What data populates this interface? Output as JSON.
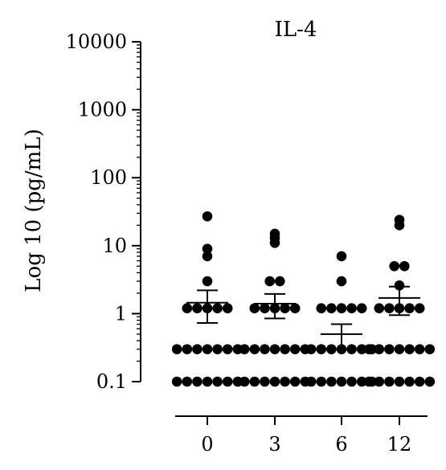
{
  "chart_data": {
    "type": "scatter",
    "title": "IL-4",
    "xlabel": "",
    "ylabel": "Log 10 (pg/mL)",
    "y_scale": "log",
    "ylim": [
      0.1,
      10000
    ],
    "y_ticks": [
      0.1,
      1,
      10,
      100,
      1000,
      10000
    ],
    "y_tick_labels": [
      "0.1",
      "1",
      "10",
      "100",
      "1000",
      "10000"
    ],
    "categories": [
      "0",
      "3",
      "6",
      "12"
    ],
    "grid": false,
    "legend": "none",
    "point_color": "#000000",
    "groups": [
      {
        "category": "0",
        "points": [
          27,
          9,
          7,
          3,
          1.2,
          1.2,
          1.2,
          1.2,
          1.2,
          0.3,
          0.3,
          0.3,
          0.3,
          0.3,
          0.3,
          0.3,
          0.1,
          0.1,
          0.1,
          0.1,
          0.1,
          0.1,
          0.1
        ],
        "mean": 1.45,
        "sem_low": 0.73,
        "sem_high": 2.2
      },
      {
        "category": "3",
        "points": [
          15,
          13,
          11,
          3,
          3,
          1.2,
          1.2,
          1.2,
          1.2,
          1.2,
          0.3,
          0.3,
          0.3,
          0.3,
          0.3,
          0.3,
          0.3,
          0.1,
          0.1,
          0.1,
          0.1,
          0.1,
          0.1,
          0.1
        ],
        "mean": 1.4,
        "sem_low": 0.85,
        "sem_high": 1.95
      },
      {
        "category": "6",
        "points": [
          7,
          3,
          1.2,
          1.2,
          1.2,
          1.2,
          1.2,
          0.3,
          0.3,
          0.3,
          0.3,
          0.3,
          0.3,
          0.3,
          0.1,
          0.1,
          0.1,
          0.1,
          0.1,
          0.1,
          0.1
        ],
        "mean": 0.5,
        "sem_low": 0.3,
        "sem_high": 0.7
      },
      {
        "category": "12",
        "points": [
          24,
          20,
          5,
          5,
          2.6,
          1.2,
          1.2,
          1.2,
          1.2,
          1.2,
          0.3,
          0.3,
          0.3,
          0.3,
          0.3,
          0.3,
          0.3,
          0.1,
          0.1,
          0.1,
          0.1,
          0.1,
          0.1,
          0.1
        ],
        "mean": 1.7,
        "sem_low": 0.95,
        "sem_high": 2.5
      }
    ]
  }
}
